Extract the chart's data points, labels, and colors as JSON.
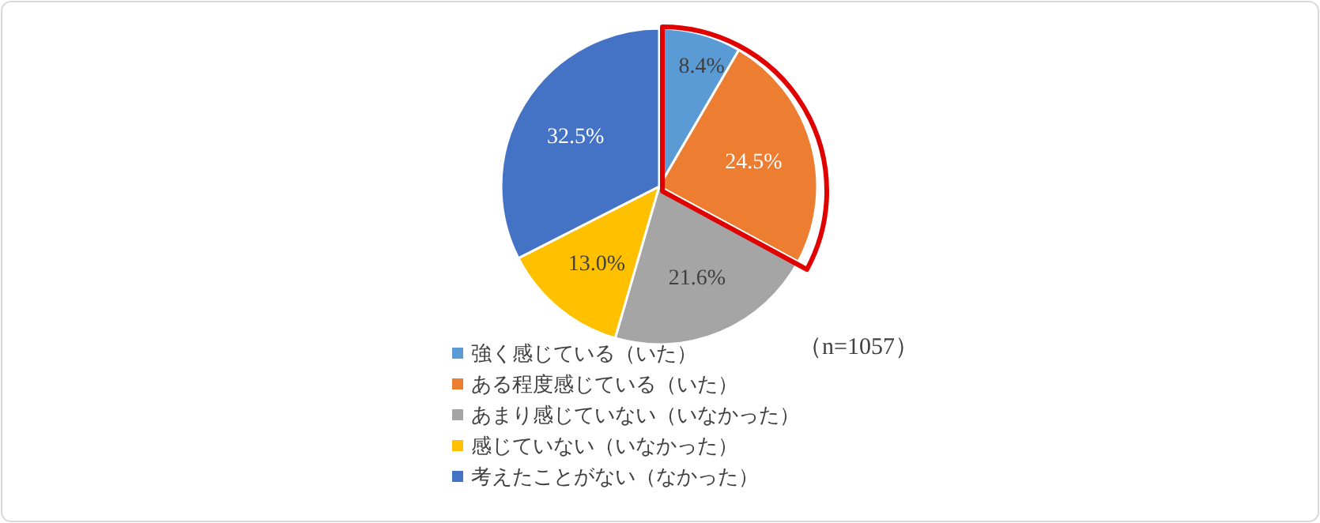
{
  "chart_data": {
    "type": "pie",
    "categories": [
      "強く感じている（いた）",
      "ある程度感じている（いた）",
      "あまり感じていない（いなかった）",
      "感じていない（いなかった）",
      "考えたことがない（なかった）"
    ],
    "values": [
      8.4,
      24.5,
      21.6,
      13.0,
      32.5
    ],
    "value_labels": [
      "8.4%",
      "24.5%",
      "21.6%",
      "13.0%",
      "32.5%"
    ],
    "colors": [
      "#5b9bd5",
      "#ed7d31",
      "#a5a5a5",
      "#ffc000",
      "#4472c4"
    ],
    "legend": "bottom",
    "annotations": [
      "（n=1057）"
    ]
  }
}
